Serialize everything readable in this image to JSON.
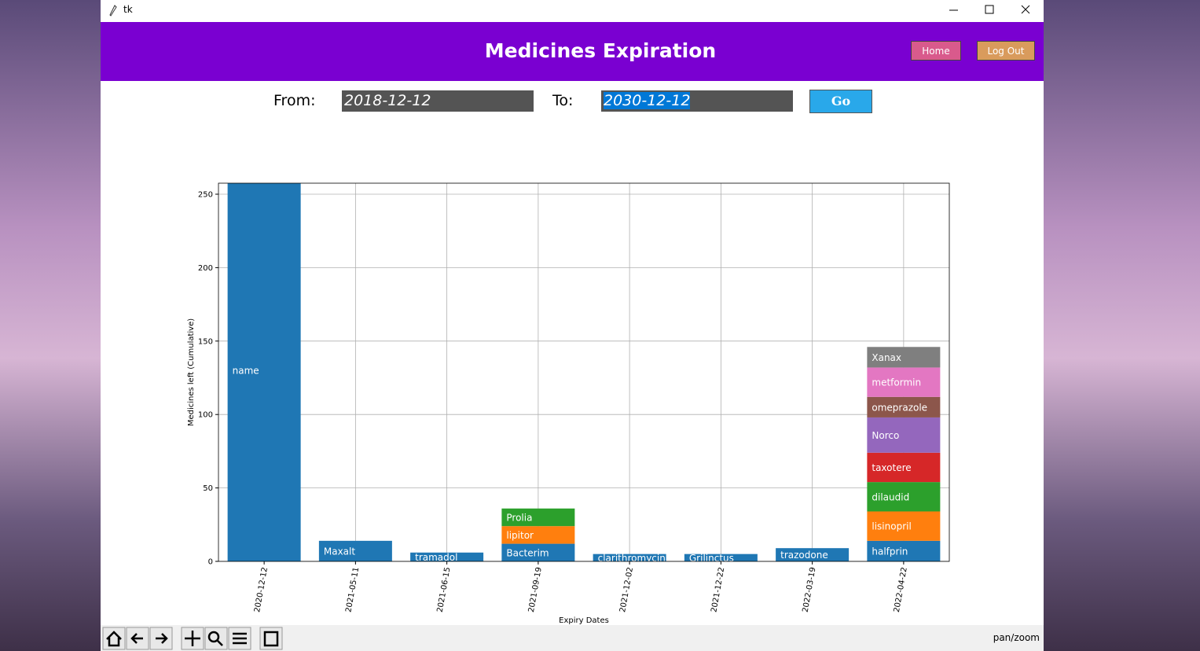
{
  "window": {
    "title": "tk"
  },
  "header": {
    "title": "Medicines Expiration",
    "buttons": [
      "Home",
      "Log Out"
    ]
  },
  "form": {
    "from_label": "From:",
    "from_value": "2018-12-12",
    "to_label": "To:",
    "to_value": "2030-12-12",
    "button": "Go"
  },
  "toolbar": {
    "status": "pan/zoom"
  },
  "chart_data": {
    "type": "stacked_bar",
    "x_label": "Expiry Dates",
    "y_label": "Medicines left (Cumulative)",
    "categories": [
      "2020-12-12",
      "2021-05-11",
      "2021-06-15",
      "2021-09-19",
      "2021-12-02",
      "2021-12-22",
      "2022-03-19",
      "2022-04-22"
    ],
    "stacks": [
      [
        {
          "name": "name",
          "color": "#1f77b4",
          "value": 260
        }
      ],
      [
        {
          "name": "Maxalt",
          "color": "#1f77b4",
          "value": 14
        }
      ],
      [
        {
          "name": "tramadol",
          "color": "#1f77b4",
          "value": 6
        }
      ],
      [
        {
          "name": "Bacterim",
          "color": "#1f77b4",
          "value": 12
        },
        {
          "name": "lipitor",
          "color": "#ff7f0e",
          "value": 12
        },
        {
          "name": "Prolia",
          "color": "#2ca02c",
          "value": 12
        }
      ],
      [
        {
          "name": "clarithromycin",
          "color": "#1f77b4",
          "value": 5
        }
      ],
      [
        {
          "name": "Grilinctus",
          "color": "#1f77b4",
          "value": 5
        }
      ],
      [
        {
          "name": "trazodone",
          "color": "#1f77b4",
          "value": 9
        }
      ],
      [
        {
          "name": "halfprin",
          "color": "#1f77b4",
          "value": 14
        },
        {
          "name": "lisinopril",
          "color": "#ff7f0e",
          "value": 20
        },
        {
          "name": "dilaudid",
          "color": "#2ca02c",
          "value": 20
        },
        {
          "name": "taxotere",
          "color": "#d62728",
          "value": 20
        },
        {
          "name": "Norco",
          "color": "#9467bd",
          "value": 24
        },
        {
          "name": "omeprazole",
          "color": "#8c564b",
          "value": 14
        },
        {
          "name": "metformin",
          "color": "#e377c2",
          "value": 20
        },
        {
          "name": "Xanax",
          "color": "#7f7f7f",
          "value": 14
        }
      ]
    ],
    "ylim": [
      0,
      257.5
    ],
    "yticks": [
      0,
      50,
      100,
      150,
      200,
      250
    ],
    "grid": true
  }
}
